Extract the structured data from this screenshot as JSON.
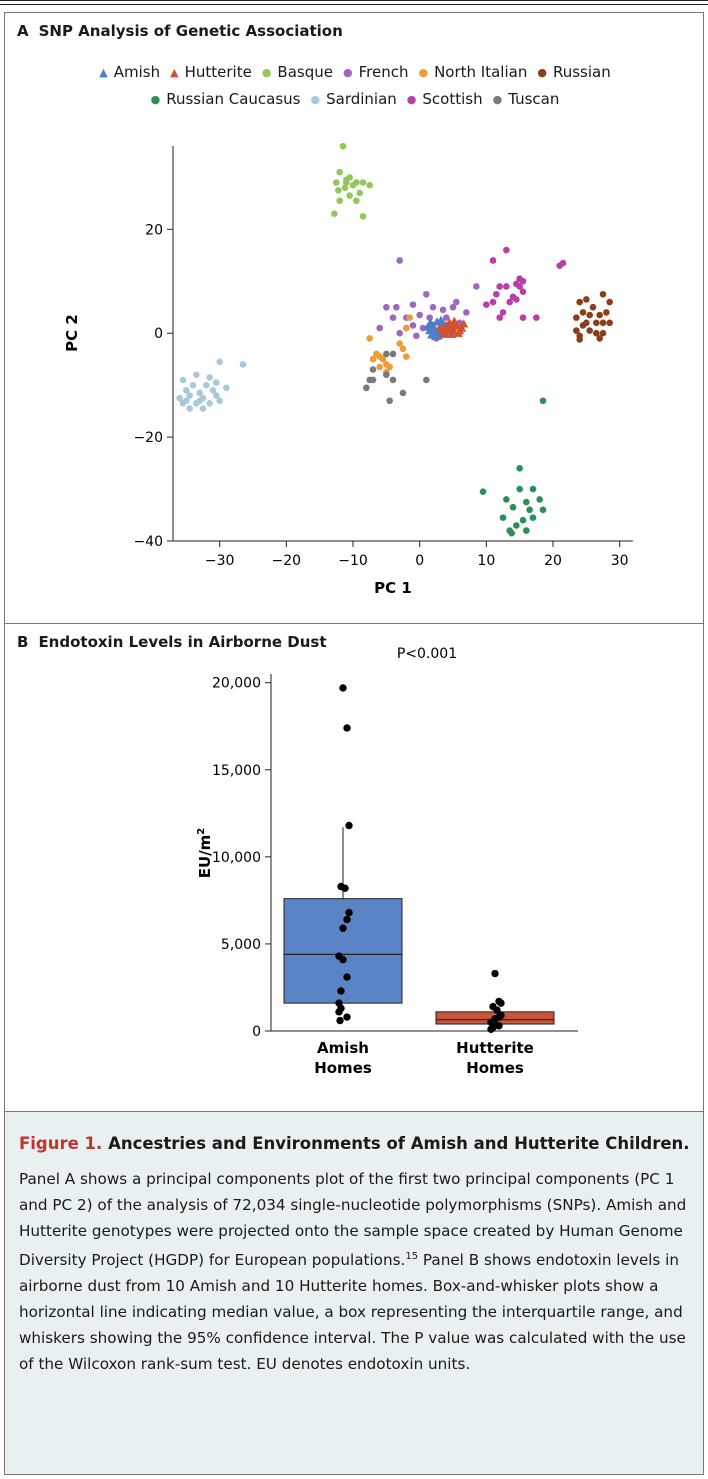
{
  "figure": {
    "panel_a_letter": "A",
    "panel_a_title": "SNP Analysis of Genetic Association",
    "panel_b_letter": "B",
    "panel_b_title": "Endotoxin Levels in Airborne Dust"
  },
  "caption": {
    "label": "Figure 1.",
    "title": "Ancestries and Environments of Amish and Hutterite Children.",
    "text_before_ref": "Panel A shows a principal components plot of the first two principal components (PC 1 and PC 2) of the analysis of 72,034 single-nucleotide polymorphisms (SNPs). Amish and Hutterite genotypes were projected onto the sample space created by Human Genome Diversity Project (HGDP) for European populations.",
    "ref": "15",
    "text_after_ref": " Panel B shows endotoxin levels in airborne dust from 10 Amish and 10 Hutterite homes. Box-and-whisker plots show a horizontal line indicating median value, a box representing the interquartile range, and whiskers showing the 95% confidence interval. The P value was calculated with the use of the Wilcoxon rank-sum test. EU denotes endotoxin units."
  },
  "chart_data": [
    {
      "type": "scatter",
      "title": "SNP Analysis of Genetic Association",
      "xlabel": "PC 1",
      "ylabel": "PC 2",
      "xlim": [
        -37,
        32
      ],
      "ylim": [
        -40,
        37
      ],
      "xticks": [
        -30,
        -20,
        -10,
        0,
        10,
        20,
        30
      ],
      "yticks": [
        -40,
        -20,
        0,
        20
      ],
      "xtick_labels": [
        "−30",
        "−20",
        "−10",
        "0",
        "10",
        "20",
        "30"
      ],
      "ytick_labels": [
        "−40",
        "−20",
        "0",
        "20"
      ],
      "grid": false,
      "legend_position": "top",
      "series": [
        {
          "name": "Amish",
          "color": "#4a7fc9",
          "marker": "triangle",
          "points": [
            [
              1.5,
              0.5
            ],
            [
              2,
              1.5
            ],
            [
              2.5,
              0
            ],
            [
              3,
              1
            ],
            [
              3.5,
              2
            ],
            [
              4,
              0.5
            ],
            [
              2.8,
              -0.5
            ],
            [
              1.8,
              -0.3
            ],
            [
              3.2,
              2.5
            ],
            [
              4.2,
              1.3
            ],
            [
              2.2,
              0.8
            ],
            [
              3.8,
              -0.2
            ],
            [
              1.2,
              1.2
            ],
            [
              2.6,
              2.2
            ],
            [
              3.4,
              0.2
            ],
            [
              4.6,
              0.8
            ],
            [
              2.4,
              -0.6
            ],
            [
              3.6,
              1.6
            ],
            [
              1.6,
              2
            ],
            [
              3,
              0
            ]
          ]
        },
        {
          "name": "Hutterite",
          "color": "#d2512f",
          "marker": "triangle",
          "points": [
            [
              3,
              1
            ],
            [
              4,
              1.5
            ],
            [
              5,
              0.5
            ],
            [
              5.5,
              1.5
            ],
            [
              6,
              0.5
            ],
            [
              4.5,
              2
            ],
            [
              3.5,
              0
            ],
            [
              5.2,
              2.3
            ],
            [
              6.3,
              1
            ],
            [
              4.8,
              -0.2
            ],
            [
              3.8,
              1.1
            ],
            [
              5.8,
              0
            ],
            [
              4.2,
              0.4
            ],
            [
              6.6,
              1.8
            ],
            [
              5,
              1.2
            ]
          ]
        },
        {
          "name": "Basque",
          "color": "#94c65c",
          "marker": "circle",
          "points": [
            [
              -11.5,
              36
            ],
            [
              -12,
              31
            ],
            [
              -10.5,
              30
            ],
            [
              -11,
              29.5
            ],
            [
              -12.5,
              29
            ],
            [
              -10,
              28.5
            ],
            [
              -9.5,
              29
            ],
            [
              -11.2,
              28
            ],
            [
              -12.2,
              27.5
            ],
            [
              -8.5,
              29
            ],
            [
              -9,
              27
            ],
            [
              -7.5,
              28.5
            ],
            [
              -10.5,
              26.5
            ],
            [
              -12,
              25.5
            ],
            [
              -9.5,
              25.5
            ],
            [
              -12.8,
              23
            ],
            [
              -8.5,
              22.5
            ],
            [
              -11,
              29
            ]
          ]
        },
        {
          "name": "French",
          "color": "#9b6ac0",
          "marker": "circle",
          "points": [
            [
              -3,
              14
            ],
            [
              -5,
              5
            ],
            [
              -3.5,
              5
            ],
            [
              -1,
              5.5
            ],
            [
              1,
              7.5
            ],
            [
              2,
              5
            ],
            [
              -2,
              3
            ],
            [
              -4,
              3
            ],
            [
              -1,
              1.5
            ],
            [
              0.5,
              1
            ],
            [
              -6,
              1
            ],
            [
              -3,
              0
            ],
            [
              -2,
              1
            ],
            [
              0,
              3.5
            ],
            [
              1.5,
              3
            ],
            [
              3.5,
              4.5
            ],
            [
              4,
              3
            ],
            [
              5,
              5
            ],
            [
              5.5,
              6
            ],
            [
              7,
              4
            ],
            [
              8.5,
              9
            ],
            [
              6,
              2
            ],
            [
              -0.5,
              -0.5
            ],
            [
              2.5,
              -1
            ]
          ]
        },
        {
          "name": "North Italian",
          "color": "#ed9d33",
          "marker": "circle",
          "points": [
            [
              -7.5,
              -1
            ],
            [
              -1.5,
              3
            ],
            [
              -2,
              1
            ],
            [
              -6.5,
              -4
            ],
            [
              -5.5,
              -5
            ],
            [
              -5,
              -6
            ],
            [
              -4.5,
              -6.5
            ],
            [
              -5,
              -7.5
            ],
            [
              -6,
              -6.5
            ],
            [
              -7,
              -5
            ],
            [
              -3,
              -2
            ],
            [
              -2.5,
              -3
            ],
            [
              -2,
              -4.5
            ],
            [
              -6,
              -4.5
            ]
          ]
        },
        {
          "name": "Russian",
          "color": "#8a3e1a",
          "marker": "circle",
          "points": [
            [
              27.5,
              7.5
            ],
            [
              24,
              6
            ],
            [
              25,
              6.5
            ],
            [
              26,
              5
            ],
            [
              28.5,
              6
            ],
            [
              24.5,
              4
            ],
            [
              25.5,
              3.5
            ],
            [
              27,
              3.5
            ],
            [
              28,
              4
            ],
            [
              23.5,
              3
            ],
            [
              26.5,
              2
            ],
            [
              27.5,
              2
            ],
            [
              28.5,
              2
            ],
            [
              24.5,
              1.5
            ],
            [
              25.5,
              0.5
            ],
            [
              26.5,
              0
            ],
            [
              27.5,
              0
            ],
            [
              24,
              -0.5
            ],
            [
              23.5,
              0.5
            ],
            [
              25,
              2
            ],
            [
              27,
              -1
            ],
            [
              24,
              -1.2
            ]
          ]
        },
        {
          "name": "Russian Caucasus",
          "color": "#2c8f57",
          "marker": "circle",
          "points": [
            [
              18.5,
              -13
            ],
            [
              15,
              -26
            ],
            [
              9.5,
              -30.5
            ],
            [
              15,
              -30
            ],
            [
              17,
              -30
            ],
            [
              13,
              -32
            ],
            [
              16,
              -32.5
            ],
            [
              18,
              -32
            ],
            [
              14,
              -33.5
            ],
            [
              16.5,
              -34
            ],
            [
              18.5,
              -34
            ],
            [
              12.5,
              -35.5
            ],
            [
              15.5,
              -36
            ],
            [
              14.5,
              -37
            ],
            [
              13.5,
              -38
            ],
            [
              16,
              -38
            ],
            [
              13.8,
              -38.5
            ],
            [
              17,
              -35.5
            ]
          ]
        },
        {
          "name": "Sardinian",
          "color": "#a9c9d9",
          "marker": "circle",
          "points": [
            [
              -30,
              -5.5
            ],
            [
              -26.5,
              -6
            ],
            [
              -33.5,
              -8
            ],
            [
              -31.5,
              -8.5
            ],
            [
              -35.5,
              -9
            ],
            [
              -34,
              -10
            ],
            [
              -32,
              -10
            ],
            [
              -30.5,
              -9.5
            ],
            [
              -35,
              -11
            ],
            [
              -33,
              -11.5
            ],
            [
              -31,
              -11
            ],
            [
              -29,
              -10.5
            ],
            [
              -36,
              -12.5
            ],
            [
              -34.5,
              -12
            ],
            [
              -32.5,
              -12.5
            ],
            [
              -30.5,
              -12
            ],
            [
              -35.5,
              -13.5
            ],
            [
              -33.5,
              -13.5
            ],
            [
              -31.5,
              -13.5
            ],
            [
              -30,
              -13
            ],
            [
              -34.5,
              -14.5
            ],
            [
              -32.5,
              -14.5
            ],
            [
              -35,
              -13
            ],
            [
              -33,
              -13
            ]
          ]
        },
        {
          "name": "Scottish",
          "color": "#b73fa7",
          "marker": "circle",
          "points": [
            [
              13,
              16
            ],
            [
              11,
              14
            ],
            [
              15,
              10.5
            ],
            [
              15.5,
              10
            ],
            [
              14.5,
              9.5
            ],
            [
              13,
              9
            ],
            [
              12,
              9
            ],
            [
              11.5,
              7.5
            ],
            [
              15.5,
              8
            ],
            [
              14,
              7
            ],
            [
              14.5,
              6.5
            ],
            [
              13.5,
              6
            ],
            [
              11,
              6
            ],
            [
              10,
              5.5
            ],
            [
              12.5,
              4
            ],
            [
              12,
              3
            ],
            [
              15.5,
              3
            ],
            [
              17.5,
              3
            ],
            [
              21.5,
              13.5
            ],
            [
              21,
              13
            ],
            [
              15,
              9
            ]
          ]
        },
        {
          "name": "Tuscan",
          "color": "#7a7a7a",
          "marker": "circle",
          "points": [
            [
              -5,
              -4
            ],
            [
              -4,
              -4
            ],
            [
              -7,
              -7
            ],
            [
              -7.5,
              -9
            ],
            [
              -5,
              -8
            ],
            [
              -8,
              -10.5
            ],
            [
              -4.5,
              -13
            ],
            [
              -2.5,
              -11.5
            ],
            [
              1,
              -9
            ],
            [
              -7,
              -9
            ],
            [
              -4,
              -9
            ]
          ]
        }
      ]
    },
    {
      "type": "box",
      "title": "Endotoxin Levels in Airborne Dust",
      "annotation": "P<0.001",
      "ylabel_base": "EU/m",
      "ylabel_superscript": "2",
      "ylim": [
        0,
        20500
      ],
      "yticks": [
        0,
        5000,
        10000,
        15000,
        20000
      ],
      "ytick_labels": [
        "0",
        "5,000",
        "10,000",
        "15,000",
        "20,000"
      ],
      "groups": [
        {
          "label_line1": "Amish",
          "label_line2": "Homes",
          "color": "#5b84c7",
          "q1": 1600,
          "median": 4400,
          "q3": 7600,
          "whisker_low": 1600,
          "whisker_high": 11700,
          "points": [
            19700,
            17400,
            11800,
            8300,
            8200,
            6800,
            6400,
            5900,
            4300,
            4100,
            3100,
            2300,
            1600,
            1300,
            1100,
            800,
            600
          ]
        },
        {
          "label_line1": "Hutterite",
          "label_line2": "Homes",
          "color": "#c9553a",
          "q1": 400,
          "median": 650,
          "q3": 1100,
          "whisker_low": 400,
          "whisker_high": 1100,
          "points": [
            3300,
            1700,
            1600,
            1400,
            1200,
            900,
            800,
            700,
            500,
            400,
            300,
            200,
            100
          ]
        }
      ]
    }
  ]
}
